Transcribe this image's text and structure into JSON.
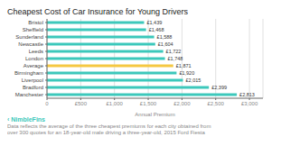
{
  "chart_data": {
    "type": "bar",
    "orientation": "horizontal",
    "title": "Cheapest Cost of Car Insurance for Young Drivers",
    "categories": [
      "Bristol",
      "Sheffield",
      "Sunderland",
      "Newcastle",
      "Leeds",
      "London",
      "Average",
      "Birmingham",
      "Liverpool",
      "Bradford",
      "Manchester"
    ],
    "values": [
      1439,
      1468,
      1588,
      1604,
      1722,
      1748,
      1871,
      1920,
      2015,
      2399,
      2813
    ],
    "value_labels": [
      "£1,439",
      "£1,468",
      "£1,588",
      "£1,604",
      "£1,722",
      "£1,748",
      "£1,871",
      "£1,920",
      "£2,015",
      "£2,399",
      "£2,813"
    ],
    "colors": [
      "#3cc8bb",
      "#3cc8bb",
      "#3cc8bb",
      "#3cc8bb",
      "#3cc8bb",
      "#3cc8bb",
      "#f5c842",
      "#3cc8bb",
      "#3cc8bb",
      "#3cc8bb",
      "#3cc8bb"
    ],
    "xlabel": "Annual Premium",
    "xlim": [
      0,
      3200
    ],
    "xticks": [
      0,
      {
        "value": 500,
        "label": "£500"
      },
      {
        "value": 1000,
        "label": "£1,000"
      },
      {
        "value": 1500,
        "label": "£1,500"
      },
      {
        "value": 2000,
        "label": "£2,000"
      },
      {
        "value": 2500,
        "label": "£2,500"
      },
      {
        "value": 3000,
        "label": "£3,000"
      }
    ],
    "grid": true,
    "data_labels": true,
    "annotations": [
      "‹ NimbleFins",
      "Data reflects the average of the three cheapest premiums for each city obtained from",
      "over 300 quotes for an 18-year-old male driving a three-year-old, 2015 Ford Fiesta"
    ]
  }
}
